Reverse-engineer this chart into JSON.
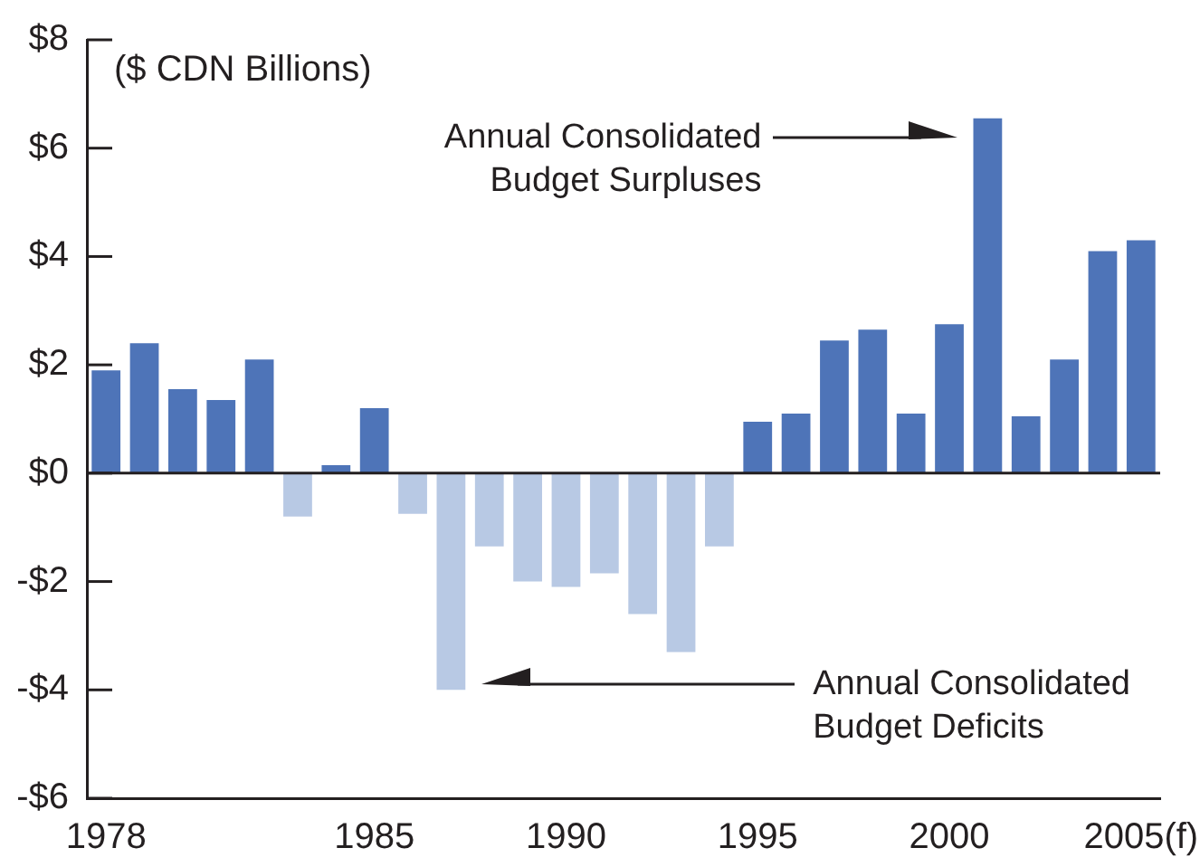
{
  "chart_data": {
    "type": "bar",
    "ylabel": "($ CDN Billions)",
    "categories": [
      "1978",
      null,
      null,
      null,
      null,
      null,
      null,
      "1985",
      null,
      null,
      null,
      null,
      "1990",
      null,
      null,
      null,
      null,
      "1995",
      null,
      null,
      null,
      null,
      "2000",
      null,
      null,
      null,
      null,
      "2005(f)"
    ],
    "values": [
      1.9,
      2.4,
      1.55,
      1.35,
      2.1,
      -0.8,
      0.15,
      1.2,
      -0.75,
      -4.0,
      -1.35,
      -2.0,
      -2.1,
      -1.85,
      -2.6,
      -3.3,
      -1.35,
      0.95,
      1.1,
      2.45,
      2.65,
      1.1,
      2.75,
      6.55,
      1.05,
      2.1,
      4.1,
      4.3
    ],
    "colors": [
      "#4e74b8",
      "#4e74b8",
      "#4e74b8",
      "#4e74b8",
      "#4e74b8",
      "#b8c9e4",
      "#4e74b8",
      "#4e74b8",
      "#b8c9e4",
      "#b8c9e4",
      "#b8c9e4",
      "#b8c9e4",
      "#b8c9e4",
      "#b8c9e4",
      "#b8c9e4",
      "#b8c9e4",
      "#b8c9e4",
      "#4e74b8",
      "#4e74b8",
      "#4e74b8",
      "#4e74b8",
      "#4e74b8",
      "#4e74b8",
      "#4e74b8",
      "#4e74b8",
      "#4e74b8",
      "#4e74b8",
      "#4e74b8"
    ],
    "ylim": [
      -6,
      8
    ],
    "yticks": [
      {
        "value": -6,
        "label": "-$6"
      },
      {
        "value": -4,
        "label": "-$4"
      },
      {
        "value": -2,
        "label": "-$2"
      },
      {
        "value": 0,
        "label": "$0"
      },
      {
        "value": 2,
        "label": "$2"
      },
      {
        "value": 4,
        "label": "$4"
      },
      {
        "value": 6,
        "label": "$6"
      },
      {
        "value": 8,
        "label": "$8"
      }
    ],
    "ref_lines": [
      {
        "axis": "y",
        "value": 0,
        "color": "#231f20"
      }
    ],
    "annotations": [
      "Annual Consolidated\nBudget Surpluses",
      "Annual Consolidated\nBudget Deficits"
    ]
  }
}
